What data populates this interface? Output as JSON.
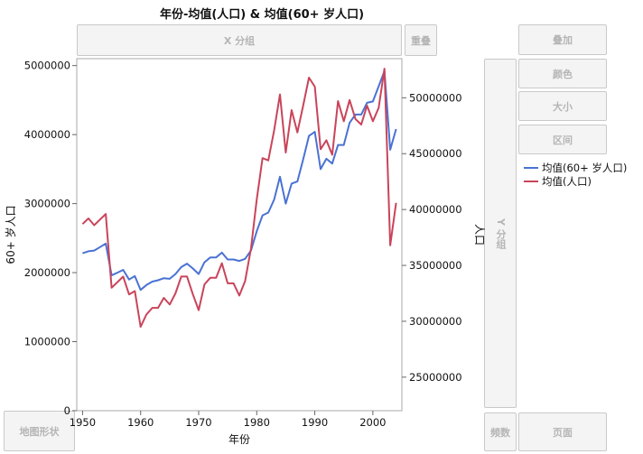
{
  "title": "年份-均值(人口) & 均值(60+ 岁人口)",
  "drop_zones": {
    "x_group": "X 分组",
    "overlap": "重叠",
    "y_group": "Y 分组",
    "map_shape": "地图形状",
    "freq": "频数",
    "page": "页面",
    "stack": "叠加",
    "color": "颜色",
    "size": "大小",
    "interval": "区间"
  },
  "legend": [
    {
      "label": "均值(60+ 岁人口)",
      "color": "#4a72d4"
    },
    {
      "label": "均值(人口)",
      "color": "#c9445a"
    }
  ],
  "chart_data": {
    "type": "line",
    "xlabel": "年份",
    "ylabel_left": "60+ 岁人口",
    "ylabel_right": "人口",
    "x_ticks": [
      1950,
      1960,
      1970,
      1980,
      1990,
      2000
    ],
    "xlim": [
      1949,
      2005
    ],
    "ylim_left": [
      0,
      5100000
    ],
    "yticks_left": [
      0,
      1000000,
      2000000,
      3000000,
      4000000,
      5000000
    ],
    "ytick_labels_left": [
      "0",
      "1000000",
      "2000000",
      "3000000",
      "4000000",
      "5000000"
    ],
    "ylim_right": [
      22000000,
      53500000
    ],
    "yticks_right": [
      25000000,
      30000000,
      35000000,
      40000000,
      45000000,
      50000000
    ],
    "ytick_labels_right": [
      "25000000",
      "30000000",
      "35000000",
      "40000000",
      "45000000",
      "50000000"
    ],
    "grid": false,
    "x": [
      1950,
      1951,
      1952,
      1953,
      1954,
      1955,
      1956,
      1957,
      1958,
      1959,
      1960,
      1961,
      1962,
      1963,
      1964,
      1965,
      1966,
      1967,
      1968,
      1969,
      1970,
      1971,
      1972,
      1973,
      1974,
      1975,
      1976,
      1977,
      1978,
      1979,
      1980,
      1981,
      1982,
      1983,
      1984,
      1985,
      1986,
      1987,
      1988,
      1989,
      1990,
      1991,
      1992,
      1993,
      1994,
      1995,
      1996,
      1997,
      1998,
      1999,
      2000,
      2001,
      2002,
      2003,
      2004
    ],
    "series": [
      {
        "name": "均值(60+ 岁人口)",
        "axis": "left",
        "color": "#4a72d4",
        "values": [
          2280000,
          2310000,
          2320000,
          2370000,
          2420000,
          1960000,
          2000000,
          2040000,
          1900000,
          1950000,
          1750000,
          1820000,
          1870000,
          1890000,
          1920000,
          1910000,
          1980000,
          2080000,
          2130000,
          2060000,
          1980000,
          2150000,
          2220000,
          2220000,
          2290000,
          2190000,
          2190000,
          2170000,
          2200000,
          2320000,
          2600000,
          2830000,
          2870000,
          3060000,
          3390000,
          3000000,
          3290000,
          3320000,
          3640000,
          3980000,
          4040000,
          3500000,
          3650000,
          3580000,
          3850000,
          3850000,
          4170000,
          4290000,
          4290000,
          4460000,
          4480000,
          4700000,
          4920000,
          3780000,
          4080000
        ]
      },
      {
        "name": "均值(人口)",
        "axis": "right",
        "color": "#c9445a",
        "values": [
          38700000,
          39200000,
          38600000,
          39100000,
          39600000,
          33000000,
          33500000,
          34000000,
          32400000,
          32700000,
          29500000,
          30600000,
          31200000,
          31200000,
          32100000,
          31500000,
          32500000,
          34000000,
          34000000,
          32400000,
          31000000,
          33300000,
          33900000,
          33900000,
          35200000,
          33400000,
          33400000,
          32300000,
          33600000,
          36500000,
          40900000,
          44600000,
          44400000,
          47100000,
          50300000,
          45100000,
          48900000,
          46900000,
          49300000,
          51800000,
          51000000,
          45400000,
          46200000,
          44900000,
          49700000,
          47900000,
          49800000,
          48100000,
          47600000,
          49300000,
          47900000,
          49100000,
          52600000,
          36800000,
          40600000
        ]
      }
    ]
  }
}
